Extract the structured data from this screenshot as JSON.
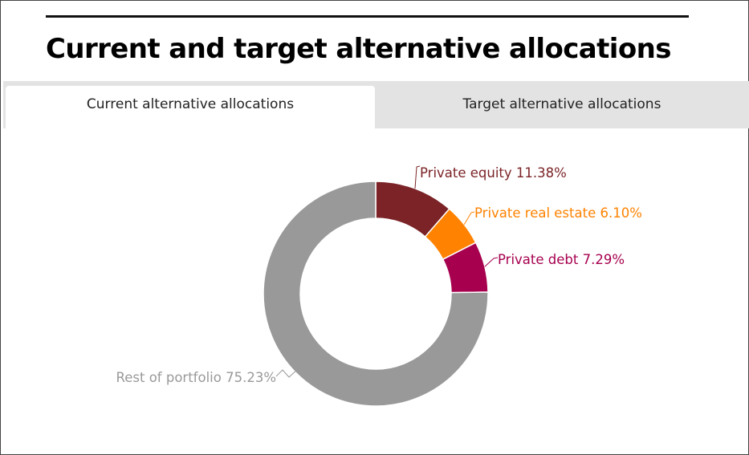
{
  "header": {
    "title": "Current and target alternative allocations"
  },
  "tabs": [
    {
      "label": "Current alternative allocations",
      "selected": true
    },
    {
      "label": "Target alternative allocations",
      "selected": false
    }
  ],
  "chart_data": {
    "type": "pie",
    "title": "",
    "slices": [
      {
        "name": "Private equity",
        "value": 11.38,
        "label": "Private equity 11.38%",
        "color": "#7b2327",
        "label_side": "right"
      },
      {
        "name": "Private real estate",
        "value": 6.1,
        "label": "Private real estate 6.10%",
        "color": "#ff8200",
        "label_side": "right"
      },
      {
        "name": "Private debt",
        "value": 7.29,
        "label": "Private debt 7.29%",
        "color": "#a6004e",
        "label_side": "right"
      },
      {
        "name": "Rest of portfolio",
        "value": 75.23,
        "label": "Rest of portfolio 75.23%",
        "color": "#999999",
        "label_side": "left"
      }
    ],
    "start_angle_deg": 0,
    "direction": "clockwise",
    "donut": true,
    "legend": "none"
  }
}
